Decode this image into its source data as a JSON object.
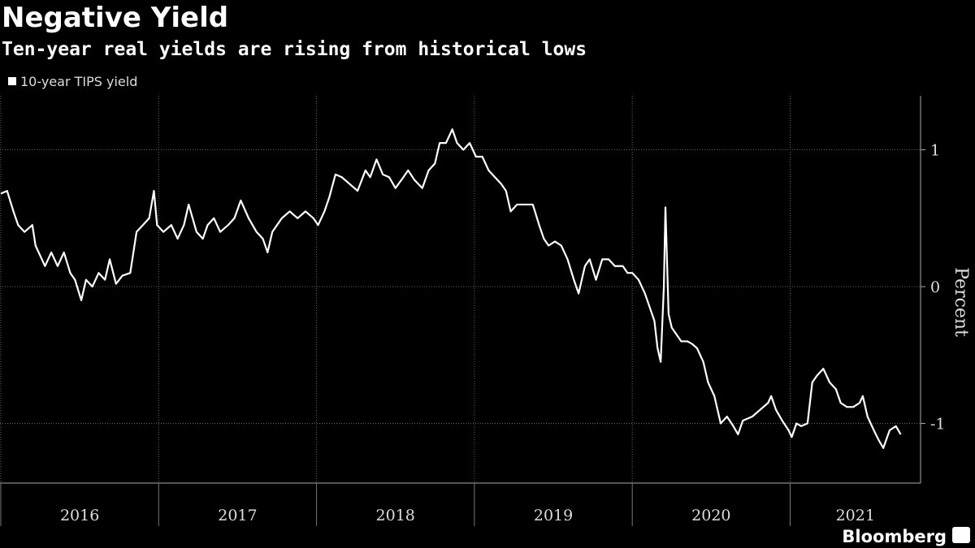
{
  "chart_data": {
    "type": "line",
    "title": "Negative Yield",
    "subtitle": "Ten-year real yields are rising from historical lows",
    "y_label": "Percent",
    "source": "Bloomberg",
    "grid": true,
    "legend": "top-left",
    "xlim": [
      2015.995,
      2021.826
    ],
    "ylim": [
      -1.436,
      1.395
    ],
    "xticks": [
      2016,
      2017,
      2018,
      2019,
      2020,
      2021
    ],
    "yticks": [
      1,
      0,
      -1
    ],
    "x": [
      2016.0,
      2016.04,
      2016.08,
      2016.11,
      2016.15,
      2016.2,
      2016.22,
      2016.26,
      2016.28,
      2016.32,
      2016.36,
      2016.4,
      2016.44,
      2016.47,
      2016.51,
      2016.54,
      2016.58,
      2016.62,
      2016.66,
      2016.69,
      2016.73,
      2016.77,
      2016.82,
      2016.86,
      2016.9,
      2016.94,
      2016.97,
      2016.99,
      2017.03,
      2017.08,
      2017.12,
      2017.16,
      2017.19,
      2017.24,
      2017.28,
      2017.31,
      2017.35,
      2017.39,
      2017.44,
      2017.48,
      2017.52,
      2017.57,
      2017.62,
      2017.66,
      2017.69,
      2017.72,
      2017.78,
      2017.83,
      2017.88,
      2017.93,
      2017.98,
      2018.01,
      2018.05,
      2018.08,
      2018.12,
      2018.16,
      2018.21,
      2018.26,
      2018.31,
      2018.34,
      2018.38,
      2018.42,
      2018.46,
      2018.5,
      2018.55,
      2018.58,
      2018.62,
      2018.67,
      2018.71,
      2018.75,
      2018.78,
      2018.82,
      2018.86,
      2018.89,
      2018.93,
      2018.97,
      2019.01,
      2019.05,
      2019.09,
      2019.13,
      2019.17,
      2019.2,
      2019.23,
      2019.27,
      2019.32,
      2019.37,
      2019.41,
      2019.44,
      2019.47,
      2019.51,
      2019.55,
      2019.59,
      2019.63,
      2019.66,
      2019.7,
      2019.73,
      2019.77,
      2019.81,
      2019.85,
      2019.89,
      2019.94,
      2019.97,
      2020.0,
      2020.04,
      2020.08,
      2020.11,
      2020.14,
      2020.16,
      2020.18,
      2020.2,
      2020.21,
      2020.23,
      2020.25,
      2020.28,
      2020.31,
      2020.35,
      2020.38,
      2020.41,
      2020.45,
      2020.48,
      2020.52,
      2020.56,
      2020.6,
      2020.64,
      2020.67,
      2020.7,
      2020.76,
      2020.81,
      2020.86,
      2020.88,
      2020.91,
      2020.95,
      2020.99,
      2021.01,
      2021.04,
      2021.07,
      2021.11,
      2021.14,
      2021.17,
      2021.21,
      2021.25,
      2021.29,
      2021.32,
      2021.36,
      2021.4,
      2021.44,
      2021.46,
      2021.49,
      2021.53,
      2021.56,
      2021.59,
      2021.63,
      2021.67,
      2021.7
    ],
    "series": [
      {
        "name": "10-year TIPS yield",
        "color": "#ffffff",
        "values": [
          0.68,
          0.7,
          0.55,
          0.45,
          0.4,
          0.45,
          0.3,
          0.2,
          0.15,
          0.25,
          0.15,
          0.25,
          0.1,
          0.05,
          -0.1,
          0.05,
          0.0,
          0.1,
          0.05,
          0.2,
          0.02,
          0.08,
          0.1,
          0.4,
          0.45,
          0.5,
          0.7,
          0.45,
          0.4,
          0.45,
          0.35,
          0.45,
          0.6,
          0.4,
          0.35,
          0.45,
          0.5,
          0.4,
          0.45,
          0.5,
          0.63,
          0.5,
          0.4,
          0.35,
          0.25,
          0.4,
          0.5,
          0.55,
          0.5,
          0.55,
          0.5,
          0.45,
          0.55,
          0.65,
          0.82,
          0.8,
          0.75,
          0.7,
          0.85,
          0.8,
          0.93,
          0.82,
          0.8,
          0.72,
          0.8,
          0.85,
          0.78,
          0.72,
          0.85,
          0.9,
          1.05,
          1.05,
          1.15,
          1.05,
          1.0,
          1.05,
          0.95,
          0.95,
          0.85,
          0.8,
          0.75,
          0.7,
          0.55,
          0.6,
          0.6,
          0.6,
          0.45,
          0.35,
          0.3,
          0.33,
          0.3,
          0.2,
          0.05,
          -0.05,
          0.15,
          0.2,
          0.05,
          0.2,
          0.2,
          0.15,
          0.15,
          0.1,
          0.1,
          0.05,
          -0.05,
          -0.15,
          -0.25,
          -0.45,
          -0.55,
          0.0,
          0.58,
          -0.2,
          -0.3,
          -0.35,
          -0.4,
          -0.4,
          -0.42,
          -0.45,
          -0.55,
          -0.7,
          -0.8,
          -1.0,
          -0.95,
          -1.02,
          -1.08,
          -0.98,
          -0.95,
          -0.9,
          -0.85,
          -0.8,
          -0.9,
          -0.98,
          -1.05,
          -1.1,
          -1.0,
          -1.02,
          -1.0,
          -0.7,
          -0.65,
          -0.6,
          -0.7,
          -0.75,
          -0.85,
          -0.88,
          -0.88,
          -0.85,
          -0.8,
          -0.95,
          -1.05,
          -1.12,
          -1.18,
          -1.05,
          -1.02,
          -1.08
        ]
      }
    ]
  }
}
